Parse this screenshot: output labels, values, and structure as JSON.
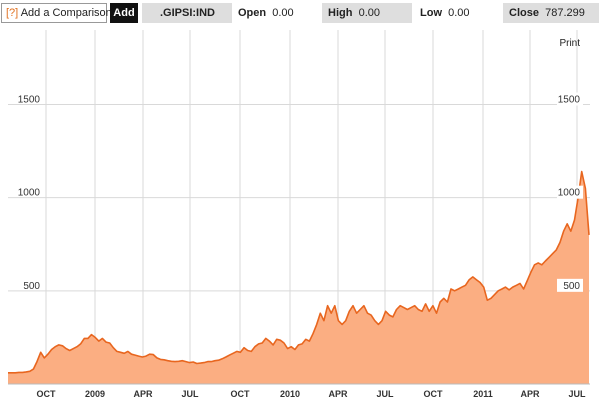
{
  "toolbar": {
    "help_label": "[?]",
    "compare_label": "Add a Comparison",
    "add_button": "Add",
    "symbol": ".GIPSI:IND",
    "open_label": "Open",
    "open_value": "0.00",
    "high_label": "High",
    "high_value": "0.00",
    "low_label": "Low",
    "low_value": "0.00",
    "close_label": "Close",
    "close_value": "787.299"
  },
  "print_label": "Print",
  "colors": {
    "line": "#e8661f",
    "fill": "#fbae82",
    "grid": "#d9d9d9"
  },
  "chart_data": {
    "type": "area",
    "y_ticks": [
      500,
      1000,
      1500
    ],
    "ylim": [
      0,
      1900
    ],
    "grid": true,
    "x_ticks": [
      "OCT",
      "2009",
      "APR",
      "JUL",
      "OCT",
      "2010",
      "APR",
      "JUL",
      "OCT",
      "2011",
      "APR",
      "JUL"
    ],
    "series": [
      {
        "values": [
          60,
          60,
          60,
          62,
          62,
          65,
          68,
          80,
          120,
          170,
          140,
          160,
          185,
          200,
          210,
          205,
          190,
          180,
          190,
          200,
          215,
          245,
          245,
          265,
          250,
          230,
          245,
          225,
          220,
          195,
          175,
          170,
          165,
          175,
          160,
          155,
          150,
          145,
          150,
          160,
          158,
          140,
          132,
          130,
          125,
          122,
          120,
          122,
          125,
          120,
          115,
          118,
          110,
          112,
          115,
          120,
          120,
          125,
          128,
          135,
          145,
          155,
          165,
          175,
          170,
          195,
          180,
          175,
          200,
          215,
          220,
          245,
          230,
          210,
          240,
          235,
          220,
          190,
          200,
          185,
          210,
          215,
          240,
          230,
          270,
          320,
          380,
          340,
          420,
          380,
          420,
          340,
          320,
          340,
          390,
          420,
          380,
          400,
          420,
          380,
          370,
          340,
          320,
          340,
          390,
          370,
          360,
          400,
          420,
          410,
          400,
          410,
          420,
          400,
          390,
          430,
          390,
          420,
          380,
          440,
          460,
          440,
          510,
          500,
          510,
          520,
          530,
          560,
          575,
          560,
          545,
          520,
          450,
          460,
          480,
          500,
          510,
          520,
          505,
          520,
          530,
          540,
          510,
          555,
          600,
          640,
          650,
          640,
          660,
          680,
          700,
          720,
          760,
          820,
          860,
          820,
          880,
          1000,
          1140,
          1050,
          800
        ]
      }
    ]
  }
}
